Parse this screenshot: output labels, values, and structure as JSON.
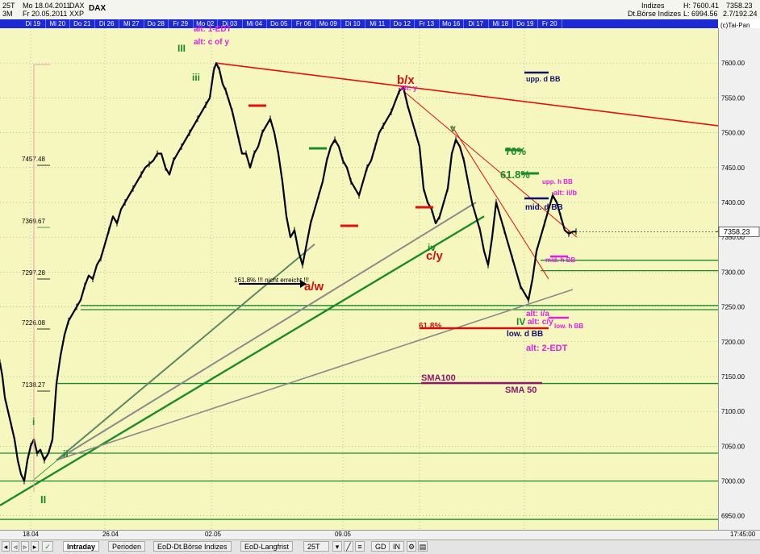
{
  "header": {
    "row1": [
      "25T",
      "Mo 18.04.2011",
      "DAX",
      "DAX"
    ],
    "row2": [
      "3M",
      "Fr 20.05.2011",
      "XXP"
    ],
    "right_a": "Indizes",
    "right_b": "Dt.Börse Indizes",
    "high": "H: 7600.41",
    "low": "L: 6994.56",
    "val1": "7358.23",
    "val2": "2.7/192.24",
    "copyright": "(c)Tai-Pan"
  },
  "days": [
    "Di 19",
    "Mi 20",
    "Do 21",
    "Di 26",
    "Mi 27",
    "Do 28",
    "Fr 29",
    "Mo 02",
    "Di 03",
    "Mi 04",
    "Do 05",
    "Fr 06",
    "Mo 09",
    "Di 10",
    "Mi 11",
    "Do 12",
    "Fr 13",
    "Mo 16",
    "Di 17",
    "Mi 18",
    "Do 19",
    "Fr 20"
  ],
  "chart_data": {
    "type": "line",
    "instrument": "DAX",
    "ylim": [
      6930,
      7650
    ],
    "y_ticks": [
      7600,
      7550,
      7500,
      7450,
      7400,
      7350,
      7300,
      7250,
      7200,
      7150,
      7100,
      7050,
      7000,
      6950
    ],
    "x_labels": [
      "18.04",
      "26.04",
      "02.05",
      "09.05"
    ],
    "time_label": "17:45:00",
    "last_price": "7358.23",
    "left_levels": [
      "7457.48",
      "7369.67",
      "7297.28",
      "7226.08",
      "7138.27"
    ],
    "series": [
      {
        "x": [
          0,
          3,
          6,
          10,
          14,
          18,
          22,
          26,
          30,
          34,
          38,
          42,
          46,
          50,
          55,
          60,
          65,
          70,
          75,
          80,
          85,
          90,
          95,
          100,
          105,
          110,
          115,
          120,
          125,
          130,
          135,
          140,
          145,
          150,
          155,
          160,
          165,
          170,
          175,
          180,
          185,
          190,
          195,
          200,
          205,
          210,
          215,
          220,
          225,
          230,
          235,
          240,
          245,
          250,
          255,
          260,
          265,
          268,
          272,
          276,
          280,
          284,
          288,
          292,
          296,
          300,
          305,
          310,
          315,
          320,
          325,
          330,
          335,
          340,
          345,
          350,
          355,
          360,
          365,
          370,
          375,
          380,
          385,
          390,
          395,
          400,
          405,
          410,
          415,
          420,
          425,
          430,
          435,
          440,
          445,
          450,
          455,
          460,
          465,
          470,
          475,
          480,
          485,
          490,
          495,
          500,
          505,
          510,
          515,
          520,
          525,
          530,
          535,
          540,
          545,
          550,
          555,
          560,
          565,
          570,
          575,
          580,
          585,
          590,
          595,
          600,
          605,
          610,
          615,
          620,
          625,
          630,
          635,
          640,
          645,
          650,
          655,
          660,
          665,
          670,
          675,
          680,
          685,
          690,
          695,
          700,
          705,
          710,
          714
        ],
        "y": [
          7170,
          7150,
          7120,
          7100,
          7080,
          7060,
          7030,
          7010,
          7000,
          7030,
          7050,
          7060,
          7040,
          7045,
          7030,
          7040,
          7060,
          7140,
          7180,
          7210,
          7230,
          7240,
          7250,
          7260,
          7280,
          7295,
          7290,
          7310,
          7320,
          7340,
          7360,
          7380,
          7370,
          7390,
          7400,
          7410,
          7420,
          7430,
          7440,
          7450,
          7455,
          7460,
          7470,
          7470,
          7450,
          7440,
          7460,
          7470,
          7480,
          7490,
          7500,
          7510,
          7520,
          7530,
          7540,
          7550,
          7590,
          7600,
          7590,
          7570,
          7560,
          7545,
          7530,
          7510,
          7490,
          7470,
          7470,
          7450,
          7470,
          7480,
          7500,
          7510,
          7520,
          7500,
          7470,
          7430,
          7380,
          7350,
          7360,
          7330,
          7310,
          7340,
          7370,
          7390,
          7410,
          7430,
          7460,
          7480,
          7490,
          7480,
          7460,
          7450,
          7430,
          7420,
          7410,
          7430,
          7450,
          7460,
          7480,
          7500,
          7510,
          7520,
          7530,
          7545,
          7560,
          7565,
          7540,
          7520,
          7500,
          7480,
          7420,
          7400,
          7390,
          7370,
          7380,
          7400,
          7420,
          7470,
          7490,
          7480,
          7460,
          7430,
          7400,
          7380,
          7360,
          7330,
          7310,
          7350,
          7400,
          7380,
          7360,
          7340,
          7320,
          7300,
          7280,
          7270,
          7260,
          7290,
          7330,
          7350,
          7370,
          7390,
          7410,
          7400,
          7380,
          7360,
          7355,
          7358,
          7358
        ],
        "color": "#000000"
      }
    ],
    "horizontal_lines": [
      {
        "y": 7252,
        "color": "#1a8a2a"
      },
      {
        "y": 7246,
        "color": "#1a8a2a"
      },
      {
        "y": 7140,
        "color": "#1a8a2a"
      },
      {
        "y": 7040,
        "color": "#1a8a2a"
      },
      {
        "y": 7000,
        "color": "#1a8a2a"
      },
      {
        "y": 6945,
        "color": "#1a8a2a"
      },
      {
        "y": 7317,
        "color": "#1a8a2a"
      },
      {
        "y": 7302,
        "color": "#1a8a2a"
      }
    ],
    "trend_lines": [
      {
        "x1": 268,
        "y1": 7600,
        "x2": 890,
        "y2": 7510,
        "color": "#e01010",
        "width": 1.6
      },
      {
        "x1": 0,
        "y1": 6965,
        "x2": 600,
        "y2": 7380,
        "color": "#1a8a2a",
        "width": 2.4
      },
      {
        "x1": 70,
        "y1": 7030,
        "x2": 590,
        "y2": 7400,
        "color": "#8a8a8a",
        "width": 2
      },
      {
        "x1": 70,
        "y1": 7030,
        "x2": 390,
        "y2": 7340,
        "color": "#8a8a8a",
        "width": 2
      },
      {
        "x1": 70,
        "y1": 7030,
        "x2": 710,
        "y2": 7275,
        "color": "#8a8a8a",
        "width": 1.6
      },
      {
        "x1": 500,
        "y1": 7560,
        "x2": 715,
        "y2": 7350,
        "color": "#e01010",
        "width": 1
      },
      {
        "x1": 560,
        "y1": 7510,
        "x2": 680,
        "y2": 7290,
        "color": "#e01010",
        "width": 1
      },
      {
        "x1": 40,
        "y1": 7000,
        "x2": 380,
        "y2": 7330,
        "color": "#1a8a2a",
        "width": 0.8
      }
    ],
    "annotations": [
      {
        "text": "alt: 1-EDT",
        "color": "#e020e0"
      },
      {
        "text": "alt: c of y",
        "color": "#e020e0"
      },
      {
        "text": "III",
        "color": "#1a8a2a"
      },
      {
        "text": "iii",
        "color": "#1a8a2a"
      },
      {
        "text": "b/x",
        "color": "#d01010"
      },
      {
        "text": "alt: y",
        "color": "#e020e0"
      },
      {
        "text": "v",
        "color": "#1a8a2a"
      },
      {
        "text": "70%",
        "color": "#1a8a2a"
      },
      {
        "text": "61.8%",
        "color": "#1a8a2a"
      },
      {
        "text": "upp. d BB",
        "color": "#101070"
      },
      {
        "text": "upp. h BB",
        "color": "#e020e0"
      },
      {
        "text": "alt: ii/b",
        "color": "#e020e0"
      },
      {
        "text": "mid. d BB",
        "color": "#101070"
      },
      {
        "text": "mid. h BB",
        "color": "#e020e0"
      },
      {
        "text": "iv",
        "color": "#1a8a2a"
      },
      {
        "text": "c/y",
        "color": "#d01010"
      },
      {
        "text": "a/w",
        "color": "#d01010"
      },
      {
        "text": "161.8% !!! nicht erreicht !!!",
        "color": "#000000"
      },
      {
        "text": "61.8%",
        "color": "#d01010"
      },
      {
        "text": "IV",
        "color": "#1a8a2a"
      },
      {
        "text": "alt: i/a",
        "color": "#e020e0"
      },
      {
        "text": "alt: c/y",
        "color": "#e020e0"
      },
      {
        "text": "low. h BB",
        "color": "#e020e0"
      },
      {
        "text": "low. d BB",
        "color": "#101070"
      },
      {
        "text": "alt: 2-EDT",
        "color": "#e020e0"
      },
      {
        "text": "SMA100",
        "color": "#8a1a6a"
      },
      {
        "text": "SMA 50",
        "color": "#8a1a6a"
      },
      {
        "text": "i",
        "color": "#1a8a2a"
      },
      {
        "text": "ii",
        "color": "#1a8a2a"
      },
      {
        "text": "II",
        "color": "#1a8a2a"
      }
    ]
  },
  "toolbar": {
    "tabs": [
      "Intraday",
      "Perioden",
      "EoD-Dt.Börse Indizes",
      "EoD-Langfrist"
    ],
    "period": "25T",
    "buttons": [
      "GD",
      "IN"
    ]
  }
}
